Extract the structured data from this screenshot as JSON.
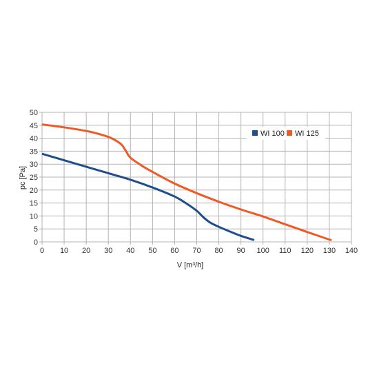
{
  "chart_data": {
    "type": "line",
    "xlabel": "V [m³/h]",
    "ylabel": "pc [Pa]",
    "xlim": [
      0,
      140
    ],
    "ylim": [
      0,
      50
    ],
    "xticks": [
      0,
      10,
      20,
      30,
      40,
      50,
      60,
      70,
      80,
      90,
      100,
      110,
      120,
      130,
      140
    ],
    "yticks": [
      0,
      5,
      10,
      15,
      20,
      25,
      30,
      35,
      40,
      45,
      50
    ],
    "grid": true,
    "legend_position": "top-right",
    "series": [
      {
        "name": "WI 100",
        "color": "#1f4e8c",
        "x": [
          0,
          10,
          20,
          30,
          40,
          50,
          60,
          65,
          70,
          73,
          76,
          80,
          85,
          90,
          96
        ],
        "y": [
          34,
          31.5,
          29,
          26.5,
          24,
          21,
          17.5,
          15,
          12,
          9.5,
          7.5,
          5.8,
          4,
          2.3,
          0.7
        ]
      },
      {
        "name": "WI 125",
        "color": "#ee5a24",
        "x": [
          0,
          10,
          20,
          25,
          30,
          33,
          36,
          38,
          40,
          45,
          50,
          60,
          70,
          80,
          90,
          100,
          110,
          120,
          131
        ],
        "y": [
          45.3,
          44.2,
          42.8,
          41.8,
          40.5,
          39.3,
          37.5,
          35,
          32.5,
          29.5,
          27,
          22.5,
          18.8,
          15.5,
          12.5,
          9.8,
          6.8,
          3.8,
          0.6
        ]
      }
    ]
  }
}
